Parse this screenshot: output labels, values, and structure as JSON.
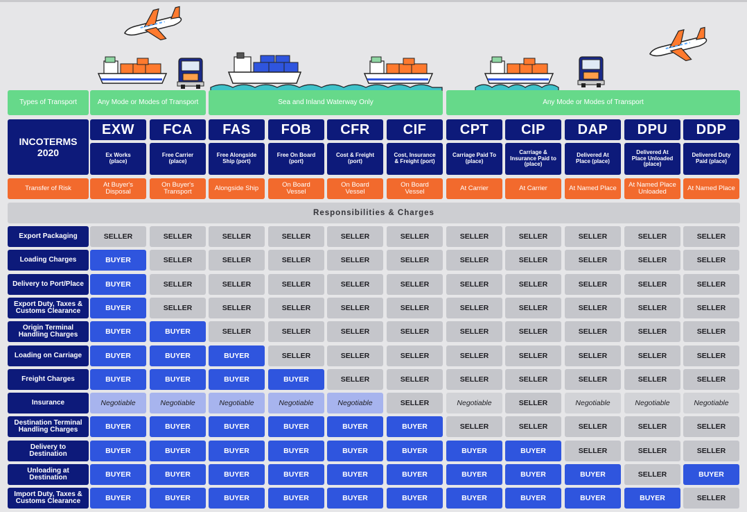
{
  "header": {
    "type_label": "Types of Transport",
    "transport_groups": [
      "Any Mode or Modes of Transport",
      "Sea and Inland Waterway Only",
      "Any Mode or Modes of Transport"
    ],
    "title": "INCOTERMS\n2020",
    "risk_label": "Transfer of Risk",
    "section_title": "Responsibilities & Charges"
  },
  "terms": [
    {
      "code": "EXW",
      "desc": "Ex Works\n(place)",
      "risk": "At Buyer's\nDisposal"
    },
    {
      "code": "FCA",
      "desc": "Free Carrier\n(place)",
      "risk": "On Buyer's\nTransport"
    },
    {
      "code": "FAS",
      "desc": "Free Alongside\nShip (port)",
      "risk": "Alongside Ship"
    },
    {
      "code": "FOB",
      "desc": "Free On Board\n(port)",
      "risk": "On Board\nVessel"
    },
    {
      "code": "CFR",
      "desc": "Cost & Freight\n(port)",
      "risk": "On Board\nVessel"
    },
    {
      "code": "CIF",
      "desc": "Cost, Insurance\n& Freight (port)",
      "risk": "On Board\nVessel"
    },
    {
      "code": "CPT",
      "desc": "Carriage Paid To\n(place)",
      "risk": "At Carrier"
    },
    {
      "code": "CIP",
      "desc": "Carriage &\nInsurance Paid to\n(place)",
      "risk": "At Carrier"
    },
    {
      "code": "DAP",
      "desc": "Delivered At\nPlace (place)",
      "risk": "At Named Place"
    },
    {
      "code": "DPU",
      "desc": "Delivered At\nPlace Unloaded\n(place)",
      "risk": "At Named Place\nUnloaded"
    },
    {
      "code": "DDP",
      "desc": "Delivered Duty\nPaid (place)",
      "risk": "At Named Place"
    }
  ],
  "rows": [
    {
      "label": "Export Packaging",
      "values": [
        "SELLER",
        "SELLER",
        "SELLER",
        "SELLER",
        "SELLER",
        "SELLER",
        "SELLER",
        "SELLER",
        "SELLER",
        "SELLER",
        "SELLER"
      ]
    },
    {
      "label": "Loading Charges",
      "values": [
        "BUYER",
        "SELLER",
        "SELLER",
        "SELLER",
        "SELLER",
        "SELLER",
        "SELLER",
        "SELLER",
        "SELLER",
        "SELLER",
        "SELLER"
      ]
    },
    {
      "label": "Delivery to Port/Place",
      "values": [
        "BUYER",
        "SELLER",
        "SELLER",
        "SELLER",
        "SELLER",
        "SELLER",
        "SELLER",
        "SELLER",
        "SELLER",
        "SELLER",
        "SELLER"
      ]
    },
    {
      "label": "Export Duty, Taxes &\nCustoms Clearance",
      "values": [
        "BUYER",
        "SELLER",
        "SELLER",
        "SELLER",
        "SELLER",
        "SELLER",
        "SELLER",
        "SELLER",
        "SELLER",
        "SELLER",
        "SELLER"
      ]
    },
    {
      "label": "Origin Terminal\nHandling Charges",
      "values": [
        "BUYER",
        "BUYER",
        "SELLER",
        "SELLER",
        "SELLER",
        "SELLER",
        "SELLER",
        "SELLER",
        "SELLER",
        "SELLER",
        "SELLER"
      ]
    },
    {
      "label": "Loading on Carriage",
      "values": [
        "BUYER",
        "BUYER",
        "BUYER",
        "SELLER",
        "SELLER",
        "SELLER",
        "SELLER",
        "SELLER",
        "SELLER",
        "SELLER",
        "SELLER"
      ]
    },
    {
      "label": "Freight Charges",
      "values": [
        "BUYER",
        "BUYER",
        "BUYER",
        "BUYER",
        "SELLER",
        "SELLER",
        "SELLER",
        "SELLER",
        "SELLER",
        "SELLER",
        "SELLER"
      ]
    },
    {
      "label": "Insurance",
      "values": [
        "Negotiable",
        "Negotiable",
        "Negotiable",
        "Negotiable",
        "Negotiable",
        "SELLER",
        "Negotiable",
        "SELLER",
        "Negotiable",
        "Negotiable",
        "Negotiable"
      ]
    },
    {
      "label": "Destination Terminal\nHandling Charges",
      "values": [
        "BUYER",
        "BUYER",
        "BUYER",
        "BUYER",
        "BUYER",
        "BUYER",
        "SELLER",
        "SELLER",
        "SELLER",
        "SELLER",
        "SELLER"
      ]
    },
    {
      "label": "Delivery to\nDestination",
      "values": [
        "BUYER",
        "BUYER",
        "BUYER",
        "BUYER",
        "BUYER",
        "BUYER",
        "BUYER",
        "BUYER",
        "SELLER",
        "SELLER",
        "SELLER"
      ]
    },
    {
      "label": "Unloading at\nDestination",
      "values": [
        "BUYER",
        "BUYER",
        "BUYER",
        "BUYER",
        "BUYER",
        "BUYER",
        "BUYER",
        "BUYER",
        "BUYER",
        "SELLER",
        "BUYER"
      ]
    },
    {
      "label": "Import Duty, Taxes &\nCustoms Clearance",
      "values": [
        "BUYER",
        "BUYER",
        "BUYER",
        "BUYER",
        "BUYER",
        "BUYER",
        "BUYER",
        "BUYER",
        "BUYER",
        "BUYER",
        "SELLER"
      ]
    }
  ],
  "colors": {
    "navy": "#0d1a7a",
    "green": "#66d98a",
    "orange": "#f26a2d",
    "buyer": "#2f55de",
    "seller": "#c5c6cb",
    "negotiable_buyer_side": "#a7b4ee",
    "negotiable_seller_side": "#d2d3d7"
  },
  "illustration_icons": [
    "airplane-icon",
    "cargo-ship-icon",
    "truck-icon",
    "waves-icon"
  ]
}
